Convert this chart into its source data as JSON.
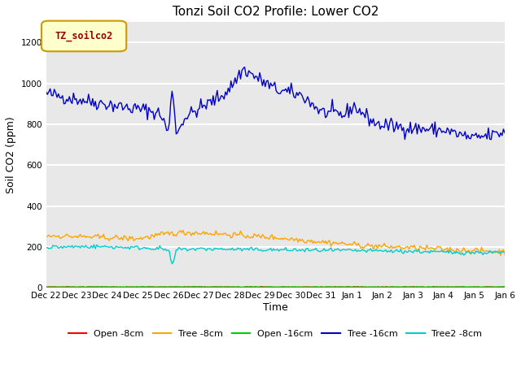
{
  "title": "Tonzi Soil CO2 Profile: Lower CO2",
  "ylabel": "Soil CO2 (ppm)",
  "xlabel": "Time",
  "legend_label": "TZ_soilco2",
  "legend_box_color": "#ffffcc",
  "legend_box_edge": "#cc9900",
  "legend_text_color": "#990000",
  "ylim": [
    0,
    1300
  ],
  "yticks": [
    0,
    200,
    400,
    600,
    800,
    1000,
    1200
  ],
  "bg_color": "#e8e8e8",
  "grid_color": "white",
  "series": {
    "open_8cm": {
      "color": "#ff0000",
      "label": "Open -8cm",
      "lw": 1.0
    },
    "tree_8cm": {
      "color": "#ffa500",
      "label": "Tree -8cm",
      "lw": 1.0
    },
    "open_16cm": {
      "color": "#00cc00",
      "label": "Open -16cm",
      "lw": 1.5
    },
    "tree_16cm": {
      "color": "#0000cc",
      "label": "Tree -16cm",
      "lw": 1.0
    },
    "tree2_8cm": {
      "color": "#00cccc",
      "label": "Tree2 -8cm",
      "lw": 1.0
    }
  },
  "x_tick_labels": [
    "Dec 22",
    "Dec 23",
    "Dec 24",
    "Dec 25",
    "Dec 26",
    "Dec 27",
    "Dec 28",
    "Dec 29",
    "Dec 30",
    "Dec 31",
    "Jan 1",
    "Jan 2",
    "Jan 3",
    "Jan 4",
    "Jan 5",
    "Jan 6"
  ],
  "n_points": 336
}
